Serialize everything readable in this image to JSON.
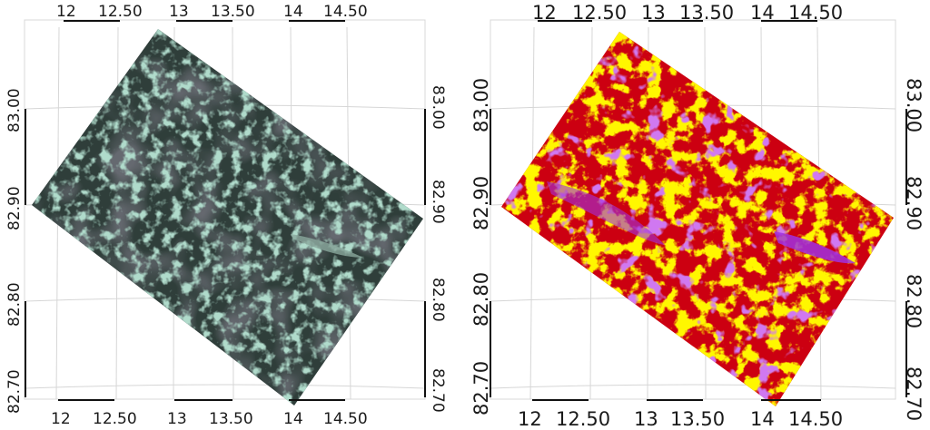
{
  "maps": [
    {
      "id": "left",
      "description_kind": "satellite-rgb",
      "top_axis_labels": [
        "12",
        "12.50",
        "13",
        "13.50",
        "14",
        "14.50"
      ],
      "bottom_axis_labels": [
        "12",
        "12.50",
        "13",
        "13.50",
        "14",
        "14.50"
      ],
      "left_axis_labels": [
        "83.00",
        "82.90",
        "82.80",
        "82.70"
      ],
      "right_axis_labels": [
        "83.00",
        "82.90",
        "82.80",
        "82.70"
      ],
      "colors": {
        "base": "#2e3d38",
        "texture": "#6fb59a",
        "dark": "#22272a"
      }
    },
    {
      "id": "right",
      "description_kind": "classification",
      "top_axis_labels": [
        "12",
        "12.50",
        "13",
        "13.50",
        "14",
        "14.50"
      ],
      "bottom_axis_labels": [
        "12",
        "12.50",
        "13",
        "13.50",
        "14",
        "14.50"
      ],
      "left_axis_labels": [
        "83.00",
        "82.90",
        "82.80",
        "82.70"
      ],
      "right_axis_labels": [
        "83.00",
        "82.90",
        "82.80",
        "82.70"
      ],
      "colors": {
        "class_a": "#ffee00",
        "class_b": "#cc0011",
        "class_c": "#a030e0"
      }
    }
  ]
}
